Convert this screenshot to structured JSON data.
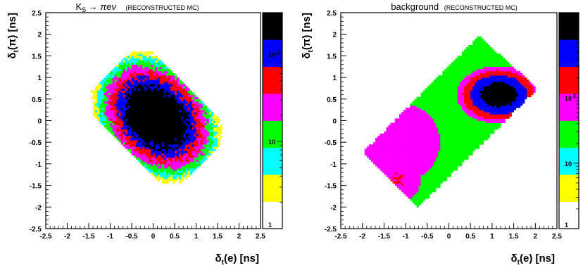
{
  "chart_data": [
    {
      "type": "heatmap",
      "title": {
        "main": "K",
        "sub": "S",
        "rest": " → πeν",
        "tag": "(RECONSTRUCTED MC)"
      },
      "xlabel": {
        "main": "δ",
        "sub": "t",
        "rest": "(e) [ns]"
      },
      "ylabel": {
        "main": "δ",
        "sub": "t",
        "rest": "(π) [ns]"
      },
      "xlim": [
        -2.5,
        2.5
      ],
      "ylim": [
        -2.5,
        2.5
      ],
      "xticks": [
        "-2.5",
        "-2",
        "-1.5",
        "-1",
        "-0.5",
        "0",
        "0.5",
        "1",
        "1.5",
        "2",
        "2.5"
      ],
      "yticks": [
        "-2.5",
        "-2",
        "-1.5",
        "-1",
        "-0.5",
        "0",
        "0.5",
        "1",
        "1.5",
        "2",
        "2.5"
      ],
      "colorbar": {
        "scale": "log",
        "range": [
          1,
          300
        ],
        "colors": [
          "#ffffff",
          "#ffff00",
          "#00ffff",
          "#00ff00",
          "#ff00ff",
          "#ff0000",
          "#0000ff",
          "#000000"
        ],
        "ticks": [
          {
            "value": 1,
            "main": "1",
            "exp": ""
          },
          {
            "value": 10,
            "main": "10",
            "exp": ""
          },
          {
            "value": 100,
            "main": "10",
            "exp": "2"
          }
        ]
      },
      "distribution": {
        "shape": "blob",
        "center": [
          0.08,
          0.08
        ],
        "sigma_u": 0.38,
        "sigma_v": 0.5,
        "peak": 600,
        "extent_u": 1.0,
        "extent_v": 1.5
      }
    },
    {
      "type": "heatmap",
      "title": {
        "main": "background",
        "sub": "",
        "rest": "",
        "tag": "(RECONSTRUCTED MC)"
      },
      "xlabel": {
        "main": "δ",
        "sub": "t",
        "rest": "(e) [ns]"
      },
      "ylabel": {
        "main": "δ",
        "sub": "t",
        "rest": "(π) [ns]"
      },
      "xlim": [
        -2.5,
        2.5
      ],
      "ylim": [
        -2.5,
        2.5
      ],
      "xticks": [
        "-2.5",
        "-2",
        "-1.5",
        "-1",
        "-0.5",
        "0",
        "0.5",
        "1",
        "1.5",
        "2",
        "2.5"
      ],
      "yticks": [
        "-2.5",
        "-2",
        "-1.5",
        "-1",
        "-0.5",
        "0",
        "0.5",
        "1",
        "1.5",
        "2",
        "2.5"
      ],
      "colorbar": {
        "scale": "log",
        "range": [
          1,
          2000
        ],
        "colors": [
          "#ffffff",
          "#ffff00",
          "#00ffff",
          "#00ff00",
          "#ff00ff",
          "#ff0000",
          "#0000ff",
          "#000000"
        ],
        "ticks": [
          {
            "value": 1,
            "main": "1",
            "exp": ""
          },
          {
            "value": 10,
            "main": "10",
            "exp": ""
          },
          {
            "value": 100,
            "main": "10",
            "exp": "2"
          },
          {
            "value": 1000,
            "main": "10",
            "exp": "3"
          }
        ]
      },
      "distribution": {
        "shape": "band",
        "corners": [
          [
            -2.0,
            -0.75
          ],
          [
            0.7,
            1.95
          ],
          [
            2.05,
            0.75
          ],
          [
            -0.7,
            -2.0
          ]
        ],
        "hotspot": {
          "center": [
            1.15,
            0.6
          ],
          "radius_x": 0.65,
          "radius_y": 0.45,
          "peak": 1500
        },
        "secondary": {
          "center": [
            -1.2,
            -1.35
          ],
          "radius": 0.55,
          "level": 120
        },
        "base_level": 25,
        "pink_region": {
          "center": [
            -1.1,
            -0.5
          ],
          "radius": 0.9,
          "level": 60
        }
      }
    }
  ]
}
